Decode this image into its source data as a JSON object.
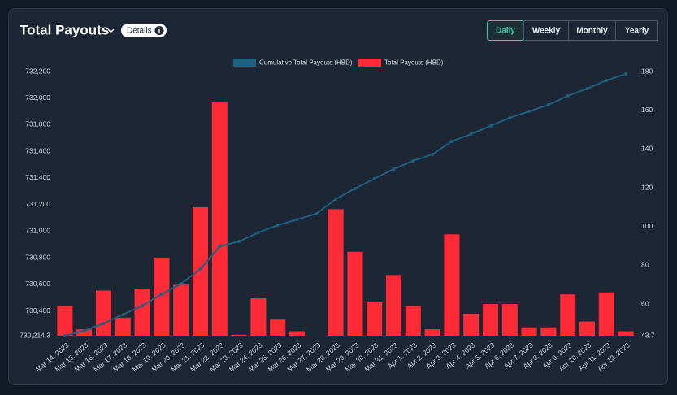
{
  "header": {
    "title": "Total Payouts",
    "details": "Details",
    "buttons": [
      "Daily",
      "Weekly",
      "Monthly",
      "Yearly"
    ],
    "active_button": 0
  },
  "chart_data": {
    "type": "bar",
    "categories": [
      "Mar 14, 2023",
      "Mar 15, 2023",
      "Mar 16, 2023",
      "Mar 17, 2023",
      "Mar 18, 2023",
      "Mar 19, 2023",
      "Mar 20, 2023",
      "Mar 21, 2023",
      "Mar 22, 2023",
      "Mar 23, 2023",
      "Mar 24, 2023",
      "Mar 25, 2023",
      "Mar 26, 2023",
      "Mar 27, 2023",
      "Mar 28, 2023",
      "Mar 29, 2023",
      "Mar 30, 2023",
      "Mar 31, 2023",
      "Apr 1, 2023",
      "Apr 2, 2023",
      "Apr 3, 2023",
      "Apr 4, 2023",
      "Apr 5, 2023",
      "Apr 6, 2023",
      "Apr 7, 2023",
      "Apr 8, 2023",
      "Apr 9, 2023",
      "Apr 10, 2023",
      "Apr 11, 2023",
      "Apr 12, 2023"
    ],
    "series": [
      {
        "name": "Cumulative Total Payouts (HBD)",
        "type": "line",
        "color": "#1f5f80",
        "values": [
          730214.3,
          730251,
          730306,
          730373,
          730440,
          730526,
          730605,
          730715,
          730886,
          730923,
          730990,
          731045,
          731088,
          731131,
          731241,
          731320,
          731394,
          731467,
          731528,
          731577,
          731675,
          731730,
          731791,
          731852,
          731901,
          731950,
          732017,
          732072,
          732133,
          732182
        ]
      },
      {
        "name": "Total Payouts (HBD)",
        "type": "bar",
        "axis": "y2",
        "color": "#ff2b36",
        "values": [
          59,
          47,
          67,
          53,
          68,
          84,
          70,
          110,
          164,
          44.2,
          63,
          52,
          46,
          43.7,
          109,
          87,
          61,
          75,
          59,
          47,
          96,
          55,
          60,
          60,
          48,
          48,
          65,
          51,
          66,
          46
        ]
      }
    ],
    "ylim": [
      730214.3,
      732200
    ],
    "yticks": [
      {
        "value": 730214.3,
        "label": "730,214.3"
      },
      {
        "value": 730400,
        "label": "730,400"
      },
      {
        "value": 730600,
        "label": "730,600"
      },
      {
        "value": 730800,
        "label": "730,800"
      },
      {
        "value": 731000,
        "label": "731,000"
      },
      {
        "value": 731200,
        "label": "731,200"
      },
      {
        "value": 731400,
        "label": "731,400"
      },
      {
        "value": 731600,
        "label": "731,600"
      },
      {
        "value": 731800,
        "label": "731,800"
      },
      {
        "value": 732000,
        "label": "732,000"
      },
      {
        "value": 732200,
        "label": "732,200"
      }
    ],
    "y2lim": [
      43.7,
      180
    ],
    "y2ticks": [
      43.7,
      60,
      80,
      100,
      120,
      140,
      160,
      180
    ],
    "grid": false,
    "legend": "top"
  }
}
